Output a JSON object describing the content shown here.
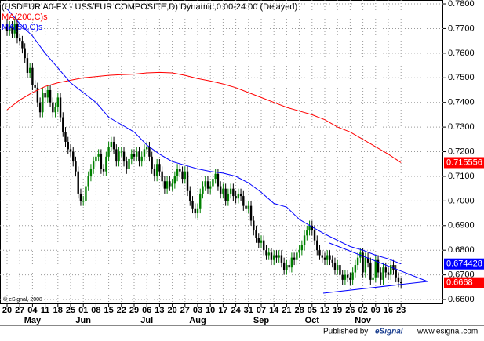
{
  "chart_data": {
    "type": "candlestick",
    "title": "(USDEUR A0-FX - US$/EUR COMPOSITE,D) Dynamic,0:00-24:00 (Delayed)",
    "copyright": "© eSignal, 2008",
    "footer": {
      "left": "Published by",
      "logo": "eSignal",
      "right": "www.esignal.com"
    },
    "grid": true,
    "ylim": [
      0.6581,
      0.7816
    ],
    "yticks": [
      {
        "value": 0.66,
        "label": "0.6600"
      },
      {
        "value": 0.67,
        "label": "0.6700"
      },
      {
        "value": 0.68,
        "label": "0.6800"
      },
      {
        "value": 0.69,
        "label": "0.6900"
      },
      {
        "value": 0.7,
        "label": "0.7000"
      },
      {
        "value": 0.71,
        "label": "0.7100"
      },
      {
        "value": 0.72,
        "label": "0.7200"
      },
      {
        "value": 0.73,
        "label": "0.7300"
      },
      {
        "value": 0.74,
        "label": "0.7400"
      },
      {
        "value": 0.75,
        "label": "0.7500"
      },
      {
        "value": 0.76,
        "label": "0.7600"
      },
      {
        "value": 0.77,
        "label": "0.7700"
      },
      {
        "value": 0.78,
        "label": "0.7800"
      }
    ],
    "xticks": [
      {
        "value": 0,
        "label": "20"
      },
      {
        "value": 5,
        "label": "27"
      },
      {
        "value": 10,
        "label": "04"
      },
      {
        "value": 15,
        "label": "11"
      },
      {
        "value": 20,
        "label": "18"
      },
      {
        "value": 25,
        "label": "25"
      },
      {
        "value": 30,
        "label": "01"
      },
      {
        "value": 35,
        "label": "08"
      },
      {
        "value": 40,
        "label": "15"
      },
      {
        "value": 45,
        "label": "22"
      },
      {
        "value": 50,
        "label": "29"
      },
      {
        "value": 55,
        "label": "06"
      },
      {
        "value": 60,
        "label": "13"
      },
      {
        "value": 65,
        "label": "20"
      },
      {
        "value": 70,
        "label": "27"
      },
      {
        "value": 75,
        "label": "03"
      },
      {
        "value": 80,
        "label": "10"
      },
      {
        "value": 85,
        "label": "17"
      },
      {
        "value": 90,
        "label": "24"
      },
      {
        "value": 95,
        "label": "31"
      },
      {
        "value": 100,
        "label": "07"
      },
      {
        "value": 105,
        "label": "14"
      },
      {
        "value": 110,
        "label": "21"
      },
      {
        "value": 115,
        "label": "28"
      },
      {
        "value": 120,
        "label": "05"
      },
      {
        "value": 125,
        "label": "12"
      },
      {
        "value": 130,
        "label": "19"
      },
      {
        "value": 135,
        "label": "26"
      },
      {
        "value": 140,
        "label": "02"
      },
      {
        "value": 145,
        "label": "09"
      },
      {
        "value": 150,
        "label": "16"
      },
      {
        "value": 155,
        "label": "23"
      }
    ],
    "months": [
      {
        "label": "May",
        "tick": 2
      },
      {
        "label": "Jun",
        "tick": 6
      },
      {
        "label": "Jul",
        "tick": 11
      },
      {
        "label": "Aug",
        "tick": 15
      },
      {
        "label": "Sep",
        "tick": 20
      },
      {
        "label": "Oct",
        "tick": 24
      },
      {
        "label": "Nov",
        "tick": 28
      }
    ],
    "price": {
      "up_color": "#008000",
      "down_color": "#000000",
      "label_color": "#ff0000",
      "last_label": "0.6668",
      "open": [
        0.772,
        0.769,
        0.771,
        0.768,
        0.772,
        0.766,
        0.765,
        0.762,
        0.758,
        0.752,
        0.754,
        0.747,
        0.746,
        0.74,
        0.736,
        0.744,
        0.742,
        0.745,
        0.74,
        0.736,
        0.738,
        0.742,
        0.734,
        0.728,
        0.724,
        0.721,
        0.72,
        0.716,
        0.712,
        0.703,
        0.7,
        0.7,
        0.706,
        0.71,
        0.713,
        0.716,
        0.718,
        0.719,
        0.713,
        0.712,
        0.718,
        0.722,
        0.724,
        0.721,
        0.716,
        0.72,
        0.72,
        0.716,
        0.713,
        0.717,
        0.719,
        0.718,
        0.72,
        0.716,
        0.718,
        0.721,
        0.722,
        0.718,
        0.713,
        0.71,
        0.715,
        0.712,
        0.708,
        0.705,
        0.708,
        0.706,
        0.707,
        0.71,
        0.713,
        0.712,
        0.709,
        0.712,
        0.704,
        0.7,
        0.697,
        0.695,
        0.697,
        0.703,
        0.706,
        0.708,
        0.705,
        0.706,
        0.709,
        0.711,
        0.706,
        0.703,
        0.705,
        0.7,
        0.703,
        0.705,
        0.702,
        0.701,
        0.703,
        0.702,
        0.698,
        0.697,
        0.698,
        0.692,
        0.688,
        0.685,
        0.683,
        0.684,
        0.68,
        0.678,
        0.679,
        0.676,
        0.678,
        0.677,
        0.678,
        0.675,
        0.672,
        0.674,
        0.673,
        0.677,
        0.676,
        0.679,
        0.68,
        0.682,
        0.686,
        0.688,
        0.69,
        0.688,
        0.684,
        0.68,
        0.678,
        0.677,
        0.676,
        0.678,
        0.676,
        0.675,
        0.672,
        0.674,
        0.67,
        0.668,
        0.67,
        0.669,
        0.668,
        0.671,
        0.674,
        0.677,
        0.679,
        0.671,
        0.677,
        0.675,
        0.668,
        0.669,
        0.676,
        0.671,
        0.668,
        0.673,
        0.671,
        0.67,
        0.674,
        0.672,
        0.669,
        0.667
      ],
      "high": [
        0.774,
        0.773,
        0.773,
        0.774,
        0.774,
        0.768,
        0.767,
        0.764,
        0.76,
        0.756,
        0.756,
        0.749,
        0.748,
        0.742,
        0.746,
        0.746,
        0.747,
        0.747,
        0.742,
        0.74,
        0.744,
        0.744,
        0.736,
        0.73,
        0.726,
        0.723,
        0.722,
        0.718,
        0.714,
        0.705,
        0.702,
        0.708,
        0.712,
        0.715,
        0.718,
        0.72,
        0.721,
        0.721,
        0.715,
        0.72,
        0.724,
        0.726,
        0.726,
        0.723,
        0.722,
        0.722,
        0.722,
        0.718,
        0.719,
        0.721,
        0.721,
        0.722,
        0.722,
        0.72,
        0.723,
        0.724,
        0.724,
        0.72,
        0.715,
        0.717,
        0.717,
        0.714,
        0.71,
        0.71,
        0.71,
        0.709,
        0.712,
        0.715,
        0.715,
        0.714,
        0.714,
        0.714,
        0.706,
        0.702,
        0.699,
        0.699,
        0.705,
        0.708,
        0.71,
        0.71,
        0.708,
        0.711,
        0.713,
        0.713,
        0.708,
        0.707,
        0.707,
        0.705,
        0.707,
        0.707,
        0.704,
        0.705,
        0.705,
        0.704,
        0.7,
        0.7,
        0.7,
        0.694,
        0.69,
        0.687,
        0.686,
        0.686,
        0.682,
        0.681,
        0.681,
        0.68,
        0.68,
        0.68,
        0.68,
        0.677,
        0.676,
        0.676,
        0.679,
        0.679,
        0.681,
        0.682,
        0.684,
        0.688,
        0.69,
        0.692,
        0.692,
        0.69,
        0.686,
        0.682,
        0.68,
        0.679,
        0.68,
        0.68,
        0.678,
        0.677,
        0.676,
        0.676,
        0.672,
        0.672,
        0.672,
        0.671,
        0.673,
        0.676,
        0.679,
        0.681,
        0.681,
        0.679,
        0.679,
        0.677,
        0.671,
        0.678,
        0.678,
        0.673,
        0.675,
        0.675,
        0.673,
        0.676,
        0.676,
        0.674,
        0.671,
        0.669
      ],
      "low": [
        0.767,
        0.767,
        0.766,
        0.766,
        0.764,
        0.763,
        0.76,
        0.756,
        0.75,
        0.75,
        0.745,
        0.744,
        0.738,
        0.734,
        0.734,
        0.74,
        0.74,
        0.738,
        0.734,
        0.734,
        0.736,
        0.732,
        0.726,
        0.722,
        0.719,
        0.718,
        0.714,
        0.71,
        0.701,
        0.698,
        0.698,
        0.698,
        0.704,
        0.708,
        0.711,
        0.714,
        0.716,
        0.711,
        0.71,
        0.71,
        0.716,
        0.72,
        0.719,
        0.714,
        0.714,
        0.718,
        0.714,
        0.711,
        0.711,
        0.715,
        0.716,
        0.716,
        0.714,
        0.714,
        0.716,
        0.719,
        0.716,
        0.711,
        0.708,
        0.708,
        0.71,
        0.706,
        0.703,
        0.703,
        0.704,
        0.704,
        0.705,
        0.708,
        0.71,
        0.707,
        0.707,
        0.702,
        0.698,
        0.695,
        0.693,
        0.693,
        0.695,
        0.701,
        0.704,
        0.703,
        0.703,
        0.704,
        0.707,
        0.704,
        0.701,
        0.701,
        0.698,
        0.698,
        0.701,
        0.7,
        0.699,
        0.699,
        0.7,
        0.696,
        0.695,
        0.695,
        0.69,
        0.686,
        0.683,
        0.681,
        0.681,
        0.678,
        0.676,
        0.676,
        0.674,
        0.674,
        0.675,
        0.675,
        0.673,
        0.67,
        0.67,
        0.671,
        0.671,
        0.674,
        0.674,
        0.677,
        0.678,
        0.68,
        0.684,
        0.686,
        0.686,
        0.682,
        0.678,
        0.676,
        0.675,
        0.674,
        0.674,
        0.674,
        0.673,
        0.67,
        0.67,
        0.668,
        0.666,
        0.666,
        0.667,
        0.666,
        0.666,
        0.669,
        0.672,
        0.675,
        0.669,
        0.669,
        0.673,
        0.666,
        0.666,
        0.667,
        0.669,
        0.666,
        0.666,
        0.669,
        0.668,
        0.668,
        0.67,
        0.667,
        0.665,
        0.6648
      ],
      "close": [
        0.769,
        0.771,
        0.768,
        0.772,
        0.766,
        0.765,
        0.762,
        0.758,
        0.752,
        0.754,
        0.747,
        0.746,
        0.74,
        0.736,
        0.744,
        0.742,
        0.745,
        0.74,
        0.736,
        0.738,
        0.742,
        0.734,
        0.728,
        0.724,
        0.721,
        0.72,
        0.716,
        0.712,
        0.703,
        0.7,
        0.7,
        0.706,
        0.71,
        0.713,
        0.716,
        0.718,
        0.719,
        0.713,
        0.712,
        0.718,
        0.722,
        0.724,
        0.721,
        0.716,
        0.72,
        0.72,
        0.716,
        0.713,
        0.717,
        0.719,
        0.718,
        0.72,
        0.716,
        0.718,
        0.721,
        0.722,
        0.718,
        0.713,
        0.71,
        0.715,
        0.712,
        0.708,
        0.705,
        0.708,
        0.706,
        0.707,
        0.71,
        0.713,
        0.712,
        0.709,
        0.712,
        0.704,
        0.7,
        0.697,
        0.695,
        0.697,
        0.703,
        0.706,
        0.708,
        0.705,
        0.706,
        0.709,
        0.711,
        0.706,
        0.703,
        0.705,
        0.7,
        0.703,
        0.705,
        0.702,
        0.701,
        0.703,
        0.702,
        0.698,
        0.697,
        0.698,
        0.692,
        0.688,
        0.685,
        0.683,
        0.684,
        0.68,
        0.678,
        0.679,
        0.676,
        0.678,
        0.677,
        0.678,
        0.675,
        0.672,
        0.674,
        0.673,
        0.677,
        0.676,
        0.679,
        0.68,
        0.682,
        0.686,
        0.688,
        0.69,
        0.688,
        0.684,
        0.68,
        0.678,
        0.677,
        0.676,
        0.678,
        0.676,
        0.675,
        0.672,
        0.674,
        0.67,
        0.668,
        0.67,
        0.669,
        0.668,
        0.671,
        0.674,
        0.677,
        0.679,
        0.671,
        0.677,
        0.675,
        0.668,
        0.669,
        0.676,
        0.671,
        0.668,
        0.673,
        0.671,
        0.67,
        0.674,
        0.672,
        0.669,
        0.667,
        0.6668
      ]
    },
    "series": [
      {
        "name": "MA(200,C)s",
        "color": "#ff0000",
        "last_label": "0.715556",
        "values": [
          0.737,
          0.741,
          0.744,
          0.7465,
          0.748,
          0.749,
          0.75,
          0.7505,
          0.751,
          0.7513,
          0.7515,
          0.752,
          0.7522,
          0.752,
          0.751,
          0.7497,
          0.7487,
          0.7475,
          0.746,
          0.744,
          0.742,
          0.74,
          0.738,
          0.7365,
          0.735,
          0.733,
          0.73,
          0.728,
          0.725,
          0.722,
          0.719,
          0.715556
        ]
      },
      {
        "name": "MA(50,C)s",
        "color": "#0000ff",
        "last_label": "0.674428",
        "values": [
          0.778,
          0.772,
          0.767,
          0.76,
          0.754,
          0.748,
          0.744,
          0.74,
          0.734,
          0.731,
          0.728,
          0.7227,
          0.719,
          0.716,
          0.7145,
          0.713,
          0.712,
          0.7113,
          0.71,
          0.7073,
          0.7035,
          0.699,
          0.6975,
          0.6925,
          0.6895,
          0.6866,
          0.684,
          0.6815,
          0.68,
          0.678,
          0.6765,
          0.674428
        ]
      }
    ]
  }
}
